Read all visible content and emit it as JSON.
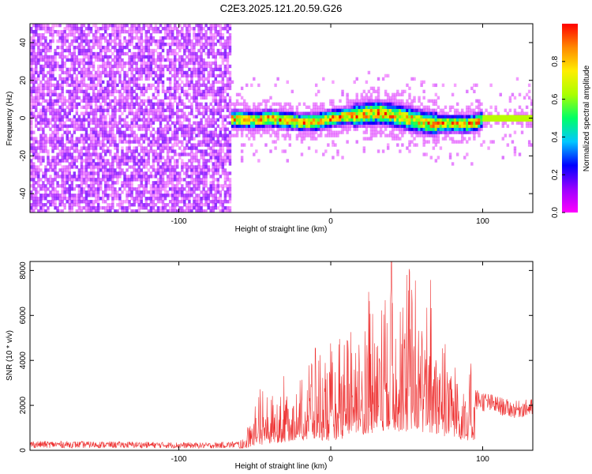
{
  "title": "C2E3.2025.121.20.59.G26",
  "chart_data": [
    {
      "type": "heatmap",
      "xlabel": "Height of straight line (km)",
      "ylabel": "Frequency (Hz)",
      "xlim": [
        -198,
        133
      ],
      "ylim": [
        -50,
        50
      ],
      "xticks": [
        -100,
        0,
        100
      ],
      "yticks": [
        -40,
        -20,
        0,
        20,
        40
      ],
      "noise_region": [
        -198,
        -66
      ],
      "signal_band_start": -70,
      "center_frequency": [
        [
          -70,
          0
        ],
        [
          -50,
          -1
        ],
        [
          -40,
          0
        ],
        [
          -30,
          -1
        ],
        [
          -20,
          -2
        ],
        [
          -10,
          -2
        ],
        [
          0,
          0
        ],
        [
          10,
          1
        ],
        [
          20,
          2
        ],
        [
          30,
          3
        ],
        [
          40,
          2
        ],
        [
          50,
          0
        ],
        [
          60,
          -2
        ],
        [
          70,
          -3
        ],
        [
          80,
          -3
        ],
        [
          90,
          -3
        ],
        [
          97,
          -2
        ],
        [
          100,
          0
        ],
        [
          133,
          0
        ]
      ],
      "colorbar": {
        "label": "Normalized spectral amplitude",
        "ticks": [
          0.0,
          0.2,
          0.4,
          0.6,
          0.8
        ],
        "range": [
          0,
          1
        ],
        "colormap": [
          "#ff00ff",
          "#9900ff",
          "#0000ff",
          "#00c8ff",
          "#00ff66",
          "#aaff00",
          "#ffee00",
          "#ff8800",
          "#ff0000"
        ]
      }
    },
    {
      "type": "line",
      "xlabel": "Height of straight line (km)",
      "ylabel": "SNR (10 * v/v)",
      "xlim": [
        -198,
        133
      ],
      "ylim": [
        0,
        8400
      ],
      "xticks": [
        -100,
        0,
        100
      ],
      "yticks": [
        0,
        2000,
        4000,
        6000,
        8000
      ],
      "color": "#ee3333",
      "envelope": [
        [
          -198,
          350
        ],
        [
          -120,
          320
        ],
        [
          -80,
          280
        ],
        [
          -60,
          350
        ],
        [
          -55,
          700
        ],
        [
          -48,
          1600
        ],
        [
          -40,
          1800
        ],
        [
          -30,
          2300
        ],
        [
          -20,
          2800
        ],
        [
          -10,
          3000
        ],
        [
          0,
          2700
        ],
        [
          10,
          3600
        ],
        [
          20,
          4500
        ],
        [
          30,
          5000
        ],
        [
          40,
          5600
        ],
        [
          50,
          5500
        ],
        [
          60,
          5000
        ],
        [
          70,
          4500
        ],
        [
          80,
          3500
        ],
        [
          90,
          2500
        ],
        [
          100,
          2300
        ],
        [
          110,
          2100
        ],
        [
          120,
          1900
        ],
        [
          133,
          2000
        ]
      ],
      "peak": [
        40,
        8400
      ]
    }
  ]
}
